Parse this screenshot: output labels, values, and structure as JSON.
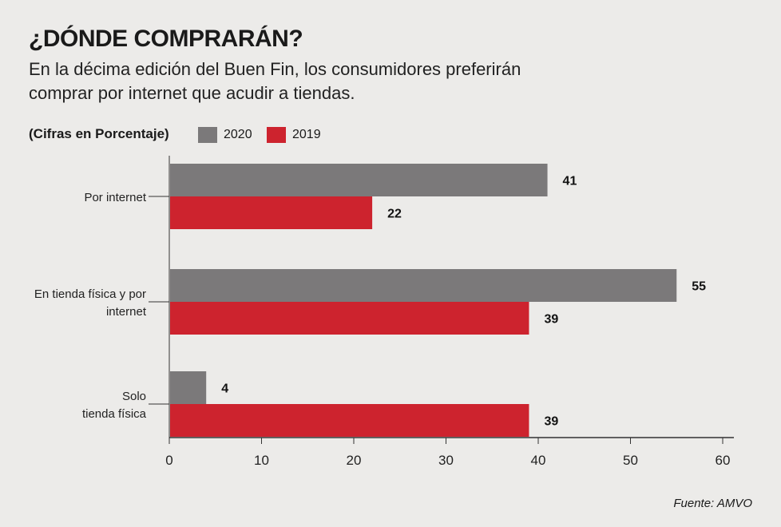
{
  "title": "¿DÓNDE COMPRARÁN?",
  "subtitle": "En la décima edición del Buen Fin, los consumidores preferirán comprar por internet que acudir a tiendas.",
  "unit_label": "(Cifras en Porcentaje)",
  "source": "Fuente: AMVO",
  "colors": {
    "2020": "#7b797a",
    "2019": "#cd232e",
    "background": "#ecebe9"
  },
  "chart_data": {
    "type": "bar",
    "orientation": "horizontal",
    "categories": [
      [
        "Por internet"
      ],
      [
        "En tienda física y por",
        "internet"
      ],
      [
        "Solo",
        "tienda física"
      ]
    ],
    "series": [
      {
        "name": "2020",
        "values": [
          41,
          55,
          4
        ]
      },
      {
        "name": "2019",
        "values": [
          22,
          39,
          39
        ]
      }
    ],
    "xlim": [
      0,
      60
    ],
    "xticks": [
      0,
      10,
      20,
      30,
      40,
      50,
      60
    ],
    "grid": false,
    "legend_position": "top-left"
  }
}
